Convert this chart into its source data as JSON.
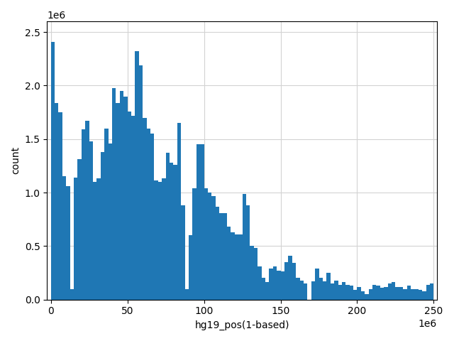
{
  "xlabel": "hg19_pos(1-based)",
  "ylabel": "count",
  "bar_color": "#1f77b4",
  "xlim": [
    -2500000,
    252000000.0
  ],
  "ylim": [
    0,
    2600000.0
  ],
  "bin_width": 2500000,
  "counts": [
    2410000,
    1840000,
    1750000,
    1150000,
    1060000,
    100000,
    1140000,
    1310000,
    1590000,
    1670000,
    1480000,
    1100000,
    1130000,
    1380000,
    1600000,
    1460000,
    1980000,
    1840000,
    1950000,
    1895000,
    1760000,
    1720000,
    2320000,
    2190000,
    1700000,
    1600000,
    1550000,
    1110000,
    1100000,
    1130000,
    1370000,
    1280000,
    1260000,
    1650000,
    880000,
    100000,
    600000,
    1040000,
    1450000,
    1450000,
    1040000,
    1000000,
    970000,
    870000,
    810000,
    810000,
    680000,
    630000,
    610000,
    610000,
    990000,
    880000,
    500000,
    480000,
    310000,
    200000,
    160000,
    290000,
    310000,
    270000,
    260000,
    350000,
    410000,
    345000,
    200000,
    175000,
    150000,
    0,
    170000,
    290000,
    200000,
    170000,
    250000,
    150000,
    175000,
    140000,
    160000,
    140000,
    130000,
    90000,
    120000,
    80000,
    50000,
    100000,
    140000,
    130000,
    110000,
    120000,
    150000,
    160000,
    120000,
    120000,
    100000,
    130000,
    100000,
    100000,
    90000,
    80000,
    140000,
    150000
  ],
  "figsize": [
    6.4,
    4.8
  ],
  "dpi": 100
}
